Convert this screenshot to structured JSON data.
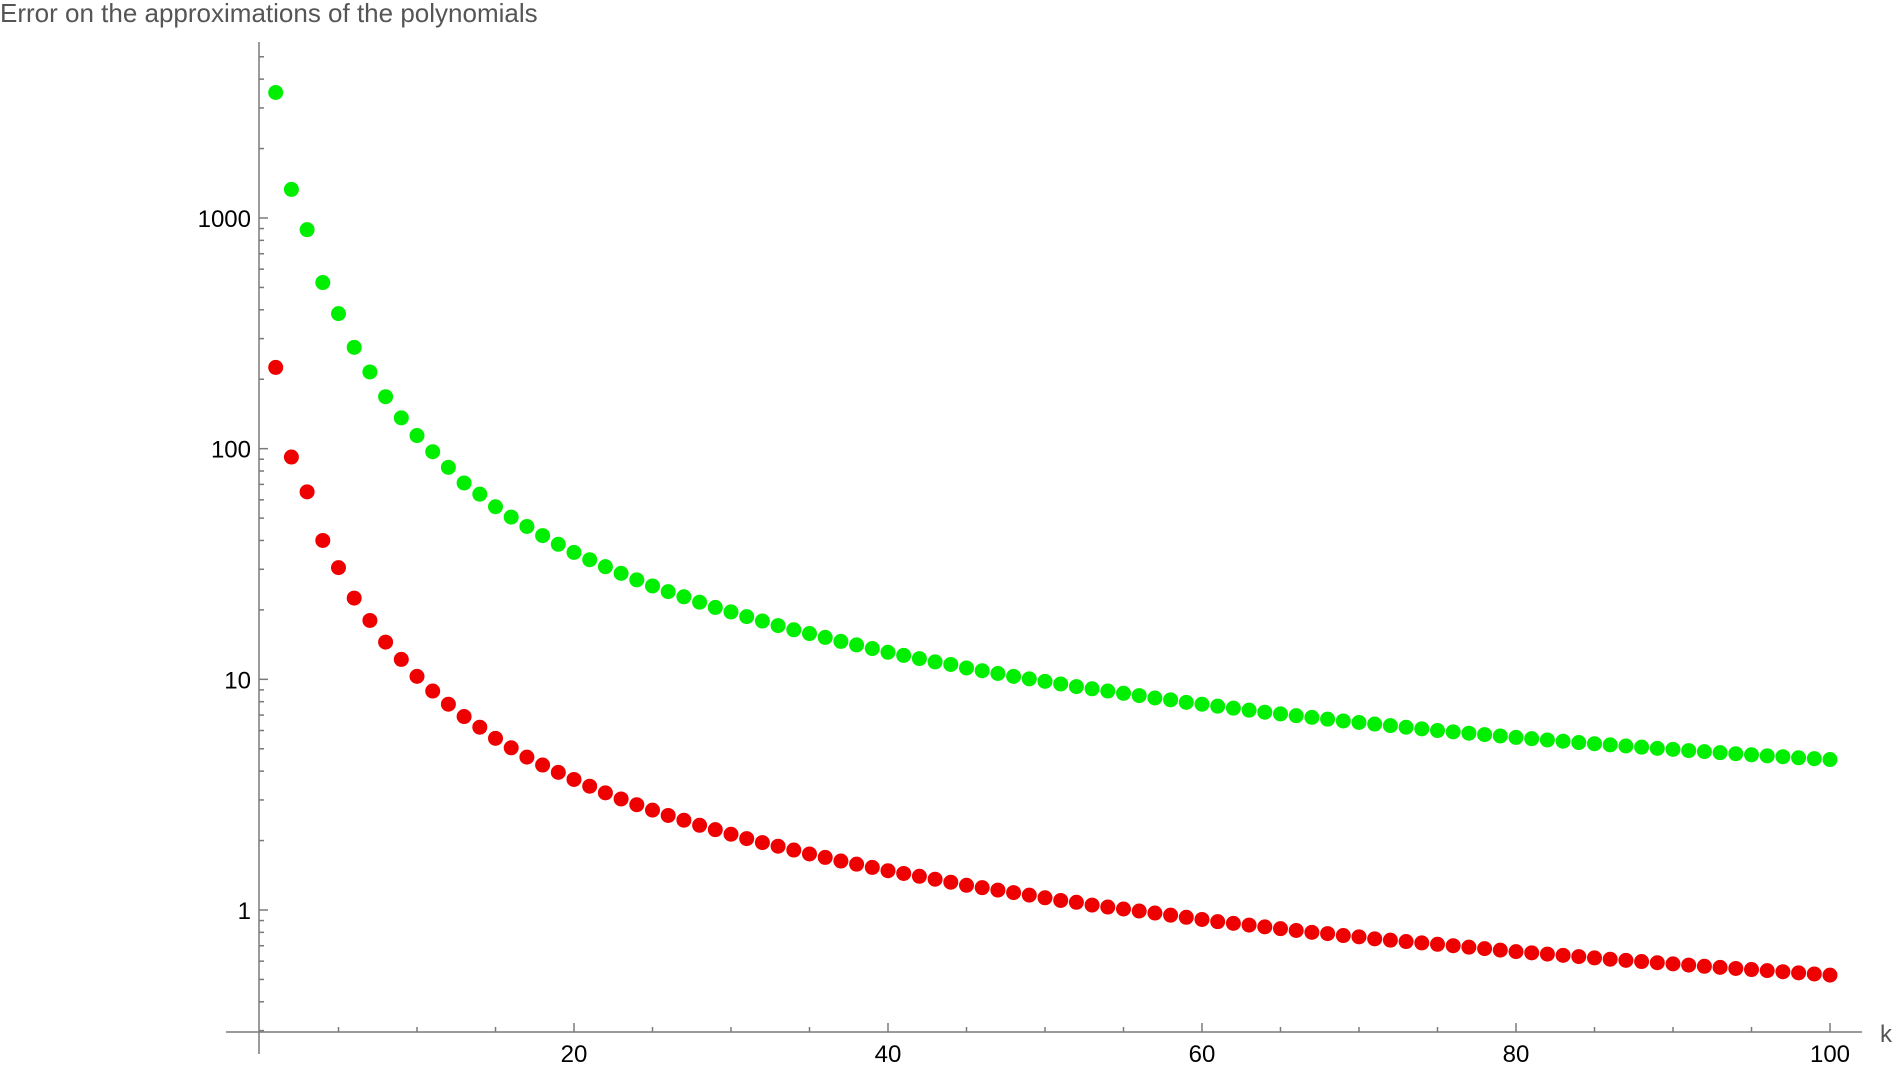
{
  "chart_data": {
    "type": "scatter",
    "title": "Error on the approximations of the polynomials",
    "xlabel": "k",
    "ylabel": "",
    "y_scale": "log",
    "xlim": [
      -2,
      102
    ],
    "ylim": [
      0.3,
      6000
    ],
    "grid": false,
    "x_ticks": [
      "20",
      "40",
      "60",
      "80",
      "100"
    ],
    "y_ticks": [
      "1",
      "10",
      "100",
      "1000"
    ],
    "x_tick_values": [
      20,
      40,
      60,
      80,
      100
    ],
    "y_tick_values": [
      1,
      10,
      100,
      1000
    ],
    "series": [
      {
        "color": "#00ee00",
        "x_start": 1,
        "x_step": 1,
        "values": [
          3500,
          1330,
          890,
          525,
          385,
          275,
          215,
          168,
          136,
          114,
          97,
          83,
          71,
          63.5,
          56,
          50.5,
          46,
          42,
          38.5,
          35.5,
          33,
          30.8,
          28.8,
          27,
          25.4,
          24,
          22.8,
          21.6,
          20.5,
          19.6,
          18.7,
          17.9,
          17.1,
          16.4,
          15.8,
          15.2,
          14.6,
          14.1,
          13.6,
          13.1,
          12.7,
          12.3,
          11.9,
          11.6,
          11.2,
          10.9,
          10.6,
          10.3,
          10.05,
          9.8,
          9.55,
          9.3,
          9.1,
          8.9,
          8.7,
          8.5,
          8.3,
          8.15,
          7.95,
          7.8,
          7.65,
          7.5,
          7.35,
          7.2,
          7.08,
          6.96,
          6.84,
          6.72,
          6.6,
          6.5,
          6.4,
          6.3,
          6.2,
          6.1,
          6.0,
          5.92,
          5.84,
          5.76,
          5.68,
          5.6,
          5.53,
          5.46,
          5.39,
          5.32,
          5.26,
          5.2,
          5.14,
          5.08,
          5.02,
          4.97,
          4.91,
          4.86,
          4.81,
          4.76,
          4.71,
          4.66,
          4.62,
          4.57,
          4.53,
          4.49
        ]
      },
      {
        "color": "#ee0000",
        "x_start": 1,
        "x_step": 1,
        "values": [
          225,
          92,
          65,
          40,
          30.5,
          22.5,
          18,
          14.5,
          12.2,
          10.3,
          8.9,
          7.8,
          6.9,
          6.2,
          5.55,
          5.05,
          4.6,
          4.25,
          3.95,
          3.68,
          3.44,
          3.22,
          3.03,
          2.86,
          2.71,
          2.57,
          2.45,
          2.33,
          2.23,
          2.13,
          2.04,
          1.96,
          1.89,
          1.82,
          1.75,
          1.69,
          1.63,
          1.58,
          1.53,
          1.48,
          1.44,
          1.4,
          1.36,
          1.32,
          1.28,
          1.25,
          1.22,
          1.19,
          1.16,
          1.13,
          1.1,
          1.08,
          1.05,
          1.03,
          1.01,
          0.99,
          0.97,
          0.95,
          0.93,
          0.91,
          0.89,
          0.875,
          0.86,
          0.845,
          0.83,
          0.815,
          0.8,
          0.79,
          0.775,
          0.765,
          0.75,
          0.74,
          0.73,
          0.72,
          0.71,
          0.7,
          0.69,
          0.68,
          0.67,
          0.66,
          0.652,
          0.644,
          0.636,
          0.628,
          0.62,
          0.612,
          0.605,
          0.598,
          0.591,
          0.584,
          0.577,
          0.57,
          0.564,
          0.558,
          0.552,
          0.546,
          0.54,
          0.534,
          0.528,
          0.522
        ]
      }
    ]
  }
}
